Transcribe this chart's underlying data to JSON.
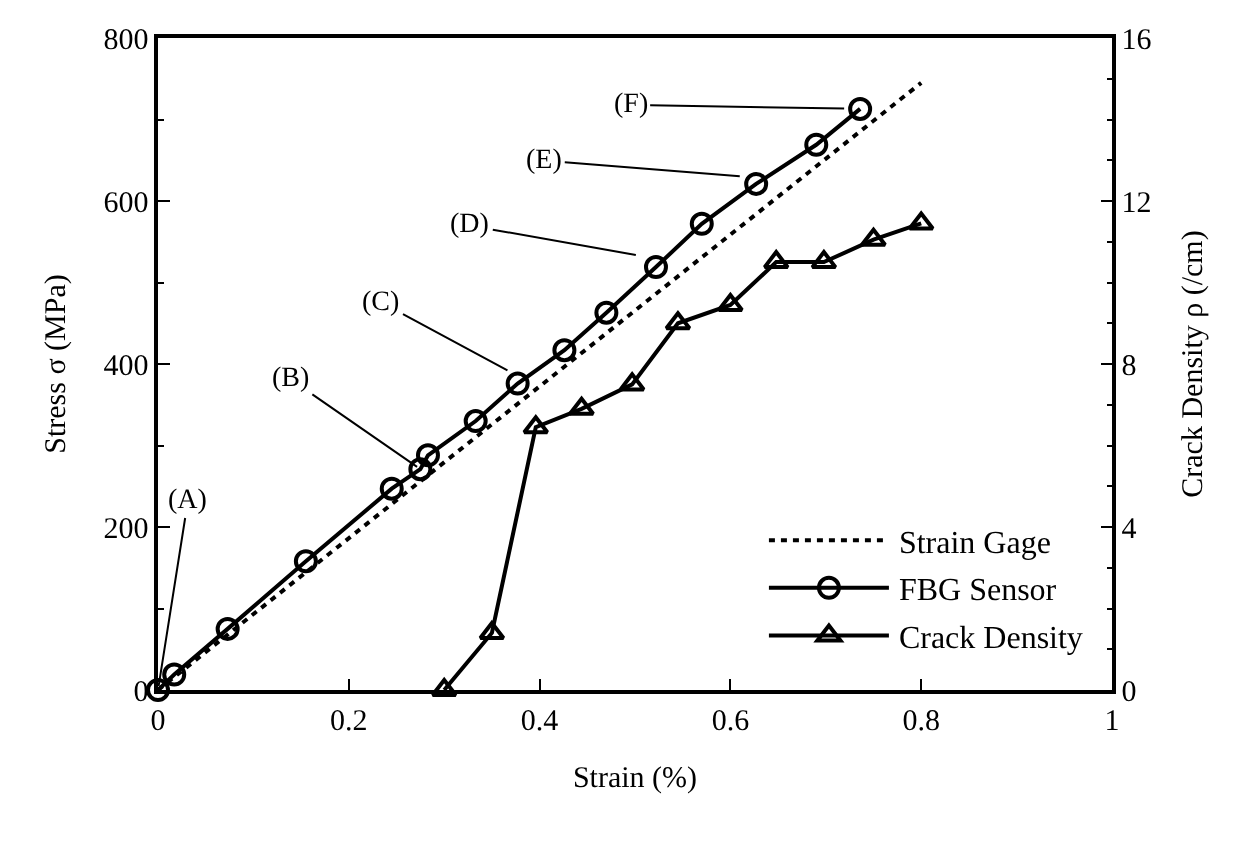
{
  "chart_data": {
    "type": "line",
    "xlabel": "Strain (%)",
    "ylabel": "Stress σ (MPa)",
    "y2label": "Crack Density ρ (/cm)",
    "xlim": [
      0,
      1
    ],
    "xticks": [
      0,
      0.2,
      0.4,
      0.6,
      0.8,
      1
    ],
    "ylim": [
      0,
      800
    ],
    "yticks": [
      0,
      200,
      400,
      600,
      800
    ],
    "y2lim": [
      0,
      16
    ],
    "y2ticks": [
      0,
      4,
      8,
      12,
      16
    ],
    "legend": "bottom right",
    "series": [
      {
        "name": "Strain Gage",
        "color": "#000000",
        "line_style": "dotted",
        "x": [
          0,
          0.8
        ],
        "values": [
          0,
          745
        ]
      },
      {
        "name": "FBG Sensor",
        "color": "#000000",
        "line_style": "solid",
        "marker": "circle",
        "x": [
          0,
          0.017,
          0.073,
          0.155,
          0.245,
          0.275,
          0.283,
          0.333,
          0.377,
          0.426,
          0.47,
          0.522,
          0.57,
          0.627,
          0.69,
          0.736
        ],
        "values": [
          0,
          19,
          75,
          158,
          247,
          271,
          288,
          330,
          376,
          417,
          463,
          519,
          572,
          621,
          669,
          713
        ]
      },
      {
        "name": "Crack Density",
        "color": "#000000",
        "line_style": "solid",
        "marker": "triangle",
        "axis": "y2",
        "x": [
          0.3,
          0.35,
          0.396,
          0.444,
          0.497,
          0.545,
          0.6,
          0.648,
          0.698,
          0.75,
          0.8
        ],
        "values": [
          0,
          1.4,
          6.45,
          6.9,
          7.5,
          9.0,
          9.45,
          10.5,
          10.5,
          11.05,
          11.45
        ]
      }
    ],
    "annotations": [
      {
        "text": "(A)",
        "x": 0,
        "y": 0
      },
      {
        "text": "(B)",
        "x": 0.275,
        "y": 271
      },
      {
        "text": "(C)",
        "x": 0.37,
        "y": 390
      },
      {
        "text": "(D)",
        "x": 0.505,
        "y": 533
      },
      {
        "text": "(E)",
        "x": 0.614,
        "y": 630
      },
      {
        "text": "(F)",
        "x": 0.736,
        "y": 713
      }
    ]
  }
}
